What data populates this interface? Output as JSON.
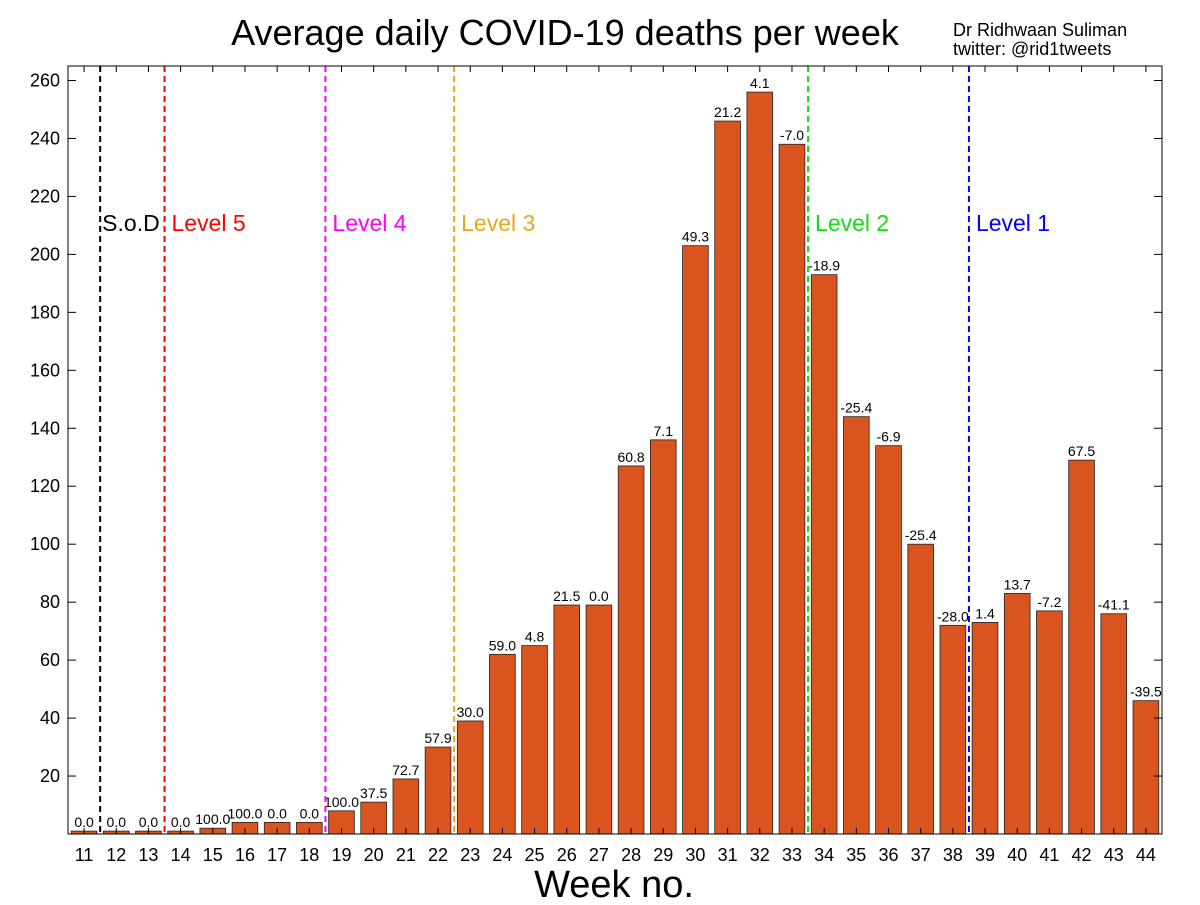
{
  "chart_data": {
    "type": "bar",
    "title": "Average daily COVID-19 deaths per week",
    "credit": [
      "Dr Ridhwaan Suliman",
      "twitter: @rid1tweets"
    ],
    "xlabel": "Week no.",
    "ylabel": "",
    "ylim": [
      0,
      265
    ],
    "yticks": [
      20,
      40,
      60,
      80,
      100,
      120,
      140,
      160,
      180,
      200,
      220,
      240,
      260
    ],
    "grid": false,
    "categories": [
      "11",
      "12",
      "13",
      "14",
      "15",
      "16",
      "17",
      "18",
      "19",
      "20",
      "21",
      "22",
      "23",
      "24",
      "25",
      "26",
      "27",
      "28",
      "29",
      "30",
      "31",
      "32",
      "33",
      "34",
      "35",
      "36",
      "37",
      "38",
      "39",
      "40",
      "41",
      "42",
      "43",
      "44"
    ],
    "values": [
      1,
      1,
      1,
      1,
      2,
      4,
      4,
      4,
      8,
      11,
      19,
      30,
      39,
      62,
      65,
      79,
      79,
      127,
      136,
      203,
      246,
      256,
      238,
      193,
      144,
      134,
      100,
      72,
      73,
      83,
      77,
      129,
      76,
      46
    ],
    "data_labels": [
      "0.0",
      "0.0",
      "0.0",
      "0.0",
      "100.0",
      "100.0",
      "0.0",
      "0.0",
      "100.0",
      "37.5",
      "72.7",
      "57.9",
      "30.0",
      "59.0",
      "4.8",
      "21.5",
      "0.0",
      "60.8",
      "7.1",
      "49.3",
      "21.2",
      "4.1",
      "-7.0",
      "-18.9",
      "-25.4",
      "-6.9",
      "-25.4",
      "-28.0",
      "1.4",
      "13.7",
      "-7.2",
      "67.5",
      "-41.1",
      "-39.5"
    ],
    "bar_color": "#d9541e",
    "annotations": [
      {
        "label": "S.o.D",
        "x": 11.5,
        "color": "#000000"
      },
      {
        "label": "Level 5",
        "x": 13.5,
        "color": "#ff0000"
      },
      {
        "label": "Level 4",
        "x": 18.5,
        "color": "#ff00ff"
      },
      {
        "label": "Level 3",
        "x": 22.5,
        "color": "#e6a817"
      },
      {
        "label": "Level 2",
        "x": 33.5,
        "color": "#11dd11"
      },
      {
        "label": "Level 1",
        "x": 38.5,
        "color": "#0000ff"
      }
    ]
  }
}
